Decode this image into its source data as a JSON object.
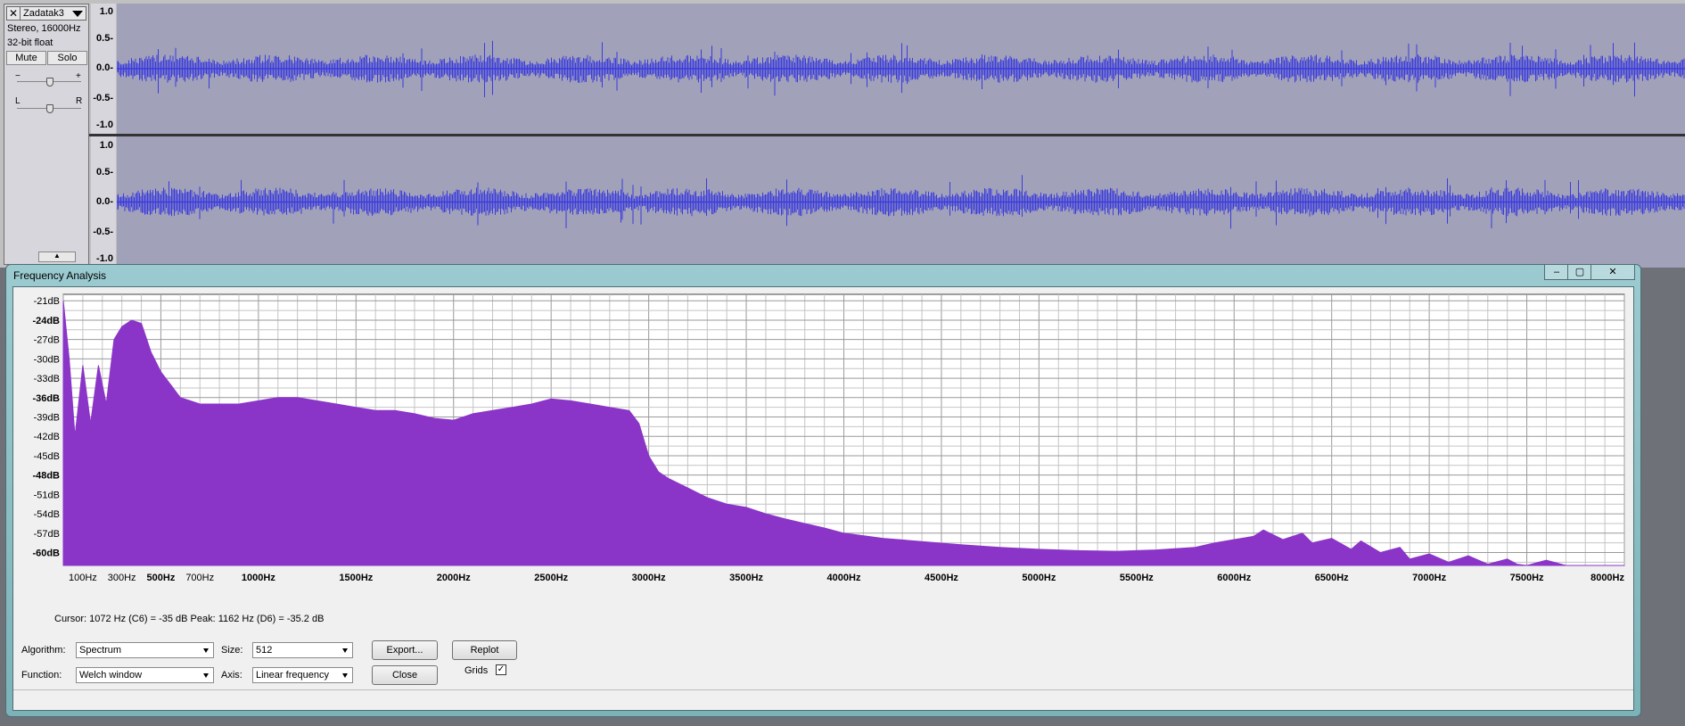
{
  "track": {
    "close_label": "✕",
    "name": "Zadatak3",
    "info_line1": "Stereo, 16000Hz",
    "info_line2": "32-bit float",
    "mute_label": "Mute",
    "solo_label": "Solo",
    "gain_minus": "−",
    "gain_plus": "+",
    "pan_left": "L",
    "pan_right": "R",
    "collapse_glyph": "▲",
    "ruler_labels": [
      "1.0",
      "0.5-",
      "0.0-",
      "-0.5-",
      "-1.0"
    ]
  },
  "dialog": {
    "title": "Frequency Analysis",
    "minimize": "–",
    "maximize": "▢",
    "close": "✕",
    "cursor_readout": "Cursor: 1072 Hz (C6) = -35 dB    Peak: 1162 Hz (D6) = -35.2 dB",
    "algorithm_label": "Algorithm:",
    "algorithm_value": "Spectrum",
    "size_label": "Size:",
    "size_value": "512",
    "function_label": "Function:",
    "function_value": "Welch window",
    "axis_label": "Axis:",
    "axis_value": "Linear frequency",
    "export_label": "Export...",
    "replot_label": "Replot",
    "close_label": "Close",
    "grids_label": "Grids",
    "grids_checked": "✓"
  },
  "chart_data": {
    "type": "area",
    "xlabel": "",
    "ylabel": "",
    "xlim": [
      0,
      8000
    ],
    "ylim": [
      -62,
      -20
    ],
    "grid": true,
    "x_tick_labels": [
      {
        "x": 100,
        "label": "100Hz"
      },
      {
        "x": 300,
        "label": "300Hz"
      },
      {
        "x": 500,
        "label": "500Hz"
      },
      {
        "x": 700,
        "label": "700Hz"
      },
      {
        "x": 1000,
        "label": "1000Hz"
      },
      {
        "x": 1500,
        "label": "1500Hz"
      },
      {
        "x": 2000,
        "label": "2000Hz"
      },
      {
        "x": 2500,
        "label": "2500Hz"
      },
      {
        "x": 3000,
        "label": "3000Hz"
      },
      {
        "x": 3500,
        "label": "3500Hz"
      },
      {
        "x": 4000,
        "label": "4000Hz"
      },
      {
        "x": 4500,
        "label": "4500Hz"
      },
      {
        "x": 5000,
        "label": "5000Hz"
      },
      {
        "x": 5500,
        "label": "5500Hz"
      },
      {
        "x": 6000,
        "label": "6000Hz"
      },
      {
        "x": 6500,
        "label": "6500Hz"
      },
      {
        "x": 7000,
        "label": "7000Hz"
      },
      {
        "x": 7500,
        "label": "7500Hz"
      },
      {
        "x": 8000,
        "label": "8000Hz"
      }
    ],
    "y_tick_labels": [
      {
        "y": -21,
        "label": "-21dB"
      },
      {
        "y": -24,
        "label": "-24dB"
      },
      {
        "y": -27,
        "label": "-27dB"
      },
      {
        "y": -30,
        "label": "-30dB"
      },
      {
        "y": -33,
        "label": "-33dB"
      },
      {
        "y": -36,
        "label": "-36dB"
      },
      {
        "y": -39,
        "label": "-39dB"
      },
      {
        "y": -42,
        "label": "-42dB"
      },
      {
        "y": -45,
        "label": "-45dB"
      },
      {
        "y": -48,
        "label": "-48dB"
      },
      {
        "y": -51,
        "label": "-51dB"
      },
      {
        "y": -54,
        "label": "-54dB"
      },
      {
        "y": -57,
        "label": "-57dB"
      },
      {
        "y": -60,
        "label": "-60dB"
      }
    ],
    "series": [
      {
        "color": "#8a35c8",
        "x": [
          0,
          30,
          60,
          100,
          140,
          180,
          220,
          260,
          300,
          350,
          400,
          450,
          500,
          550,
          600,
          650,
          700,
          800,
          900,
          1000,
          1100,
          1200,
          1300,
          1400,
          1500,
          1600,
          1700,
          1800,
          1900,
          2000,
          2100,
          2200,
          2300,
          2400,
          2500,
          2600,
          2700,
          2800,
          2900,
          2950,
          3000,
          3050,
          3100,
          3200,
          3300,
          3400,
          3500,
          3600,
          3700,
          3800,
          3900,
          4000,
          4200,
          4400,
          4600,
          4800,
          5000,
          5200,
          5400,
          5600,
          5800,
          5900,
          6000,
          6100,
          6150,
          6250,
          6350,
          6400,
          6500,
          6600,
          6650,
          6750,
          6850,
          6900,
          7000,
          7100,
          7200,
          7300,
          7400,
          7450,
          7500,
          7600,
          7700,
          7800,
          7900,
          8000
        ],
        "values": [
          -21,
          -30,
          -42,
          -31,
          -40,
          -31,
          -37,
          -27,
          -25,
          -24,
          -24.5,
          -29,
          -32,
          -34,
          -36,
          -36.5,
          -37,
          -37,
          -37,
          -36.5,
          -36,
          -36,
          -36.5,
          -37,
          -37.5,
          -38,
          -38,
          -38.5,
          -39.2,
          -39.5,
          -38.5,
          -38,
          -37.5,
          -37,
          -36.2,
          -36.5,
          -37,
          -37.5,
          -38,
          -40,
          -45,
          -47.5,
          -48.5,
          -50,
          -51.5,
          -52.5,
          -53,
          -54,
          -54.8,
          -55.5,
          -56.2,
          -57,
          -57.8,
          -58.3,
          -58.8,
          -59.2,
          -59.5,
          -59.7,
          -59.8,
          -59.6,
          -59.2,
          -58.5,
          -58,
          -57.5,
          -56.5,
          -58,
          -57,
          -58.5,
          -57.8,
          -59.5,
          -58.2,
          -60,
          -59.2,
          -61,
          -60.2,
          -61.5,
          -60.5,
          -61.8,
          -61,
          -61.8,
          -62,
          -61.2,
          -62,
          -62,
          -62,
          -62
        ]
      }
    ]
  }
}
